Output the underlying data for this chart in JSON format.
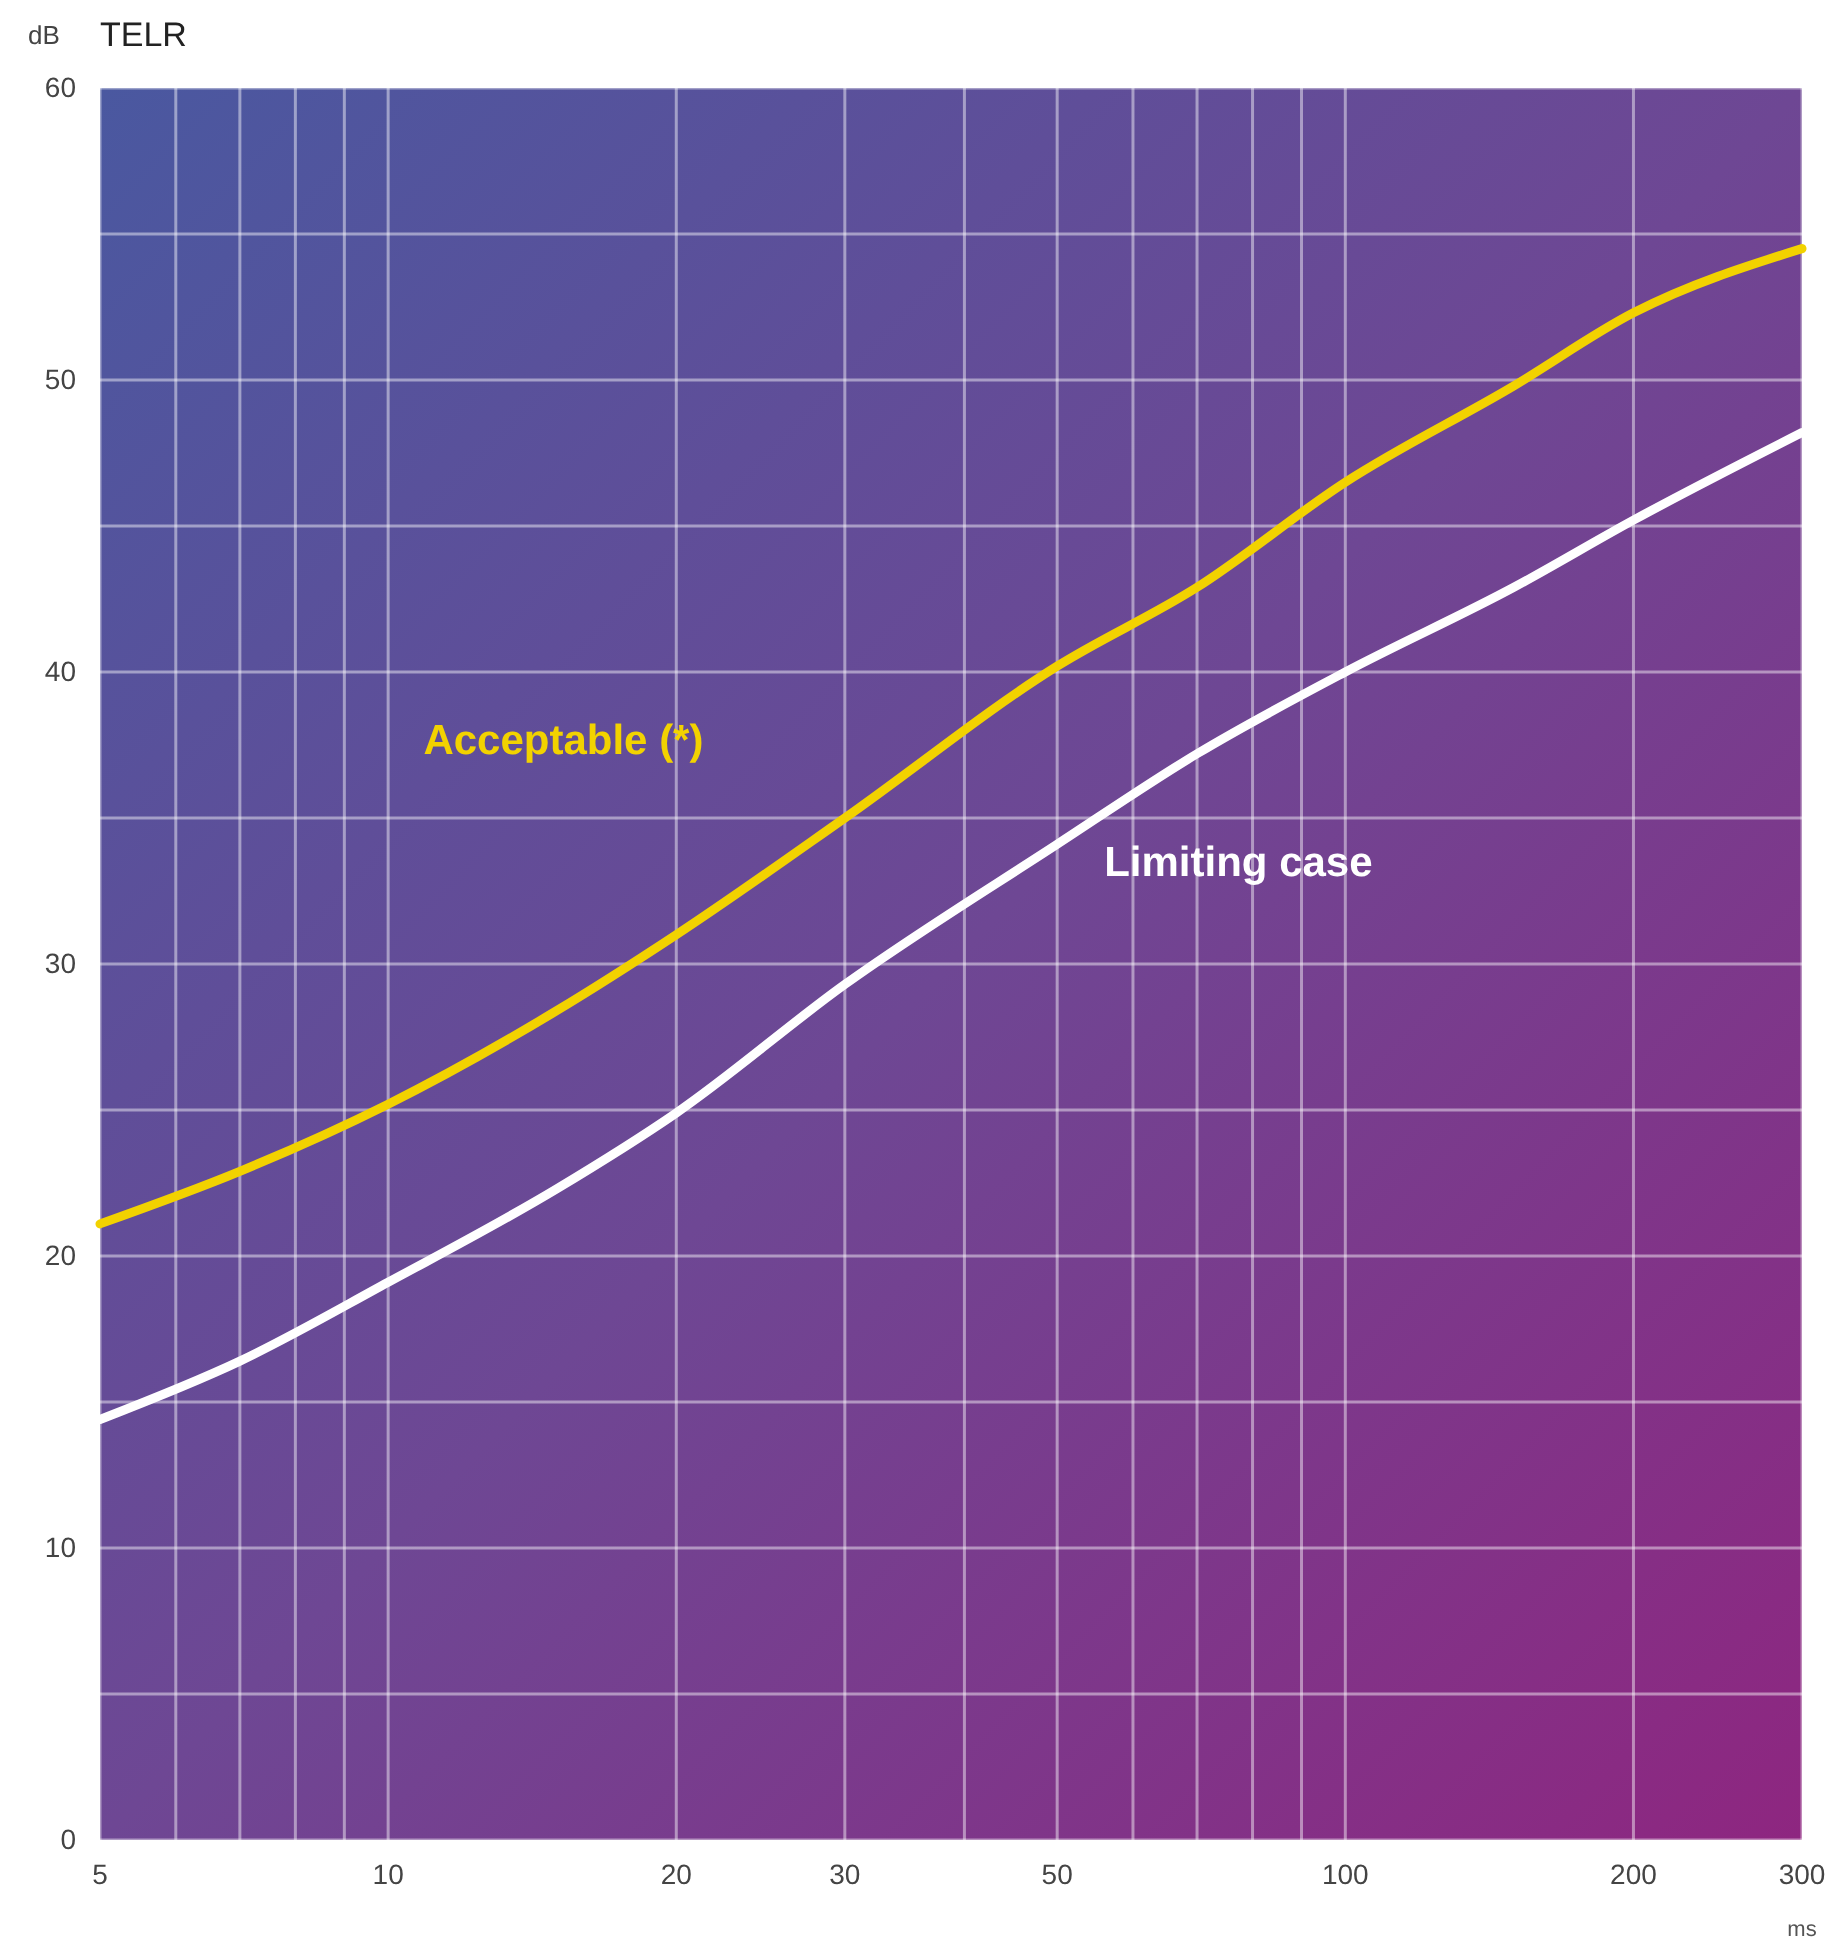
{
  "chart_data": {
    "type": "line",
    "title": "TELR",
    "ylabel": "dB",
    "xlabel": "ms",
    "log": "x",
    "xlim": [
      5,
      300
    ],
    "xticks": [
      5,
      {
        "value": 6,
        "label": null
      },
      {
        "value": 7,
        "label": null
      },
      {
        "value": 8,
        "label": null
      },
      {
        "value": 9,
        "label": null
      },
      10,
      20,
      30,
      {
        "value": 40,
        "label": null
      },
      50,
      {
        "value": 60,
        "label": null
      },
      {
        "value": 70,
        "label": null
      },
      {
        "value": 80,
        "label": null
      },
      {
        "value": 90,
        "label": null
      },
      100,
      200,
      300
    ],
    "ylim": [
      0,
      60
    ],
    "yticks": [
      0,
      {
        "value": 5,
        "label": null
      },
      10,
      {
        "value": 15,
        "label": null
      },
      20,
      {
        "value": 25,
        "label": null
      },
      30,
      {
        "value": 35,
        "label": null
      },
      40,
      {
        "value": 45,
        "label": null
      },
      50,
      {
        "value": 55,
        "label": null
      },
      60
    ],
    "grid": true,
    "legend": false,
    "marker": "none",
    "line_style": "solid",
    "series": [
      {
        "name": "Acceptable (*)",
        "color": "#f2d200",
        "x": [
          5,
          7,
          10,
          15,
          20,
          30,
          50,
          70,
          100,
          150,
          200,
          300
        ],
        "values": [
          21.1,
          22.9,
          25.2,
          28.4,
          31,
          35,
          40.2,
          42.9,
          46.5,
          49.8,
          52.3,
          54.5
        ]
      },
      {
        "name": "Limiting case",
        "color": "#ffffff",
        "x": [
          5,
          7,
          10,
          15,
          20,
          30,
          50,
          70,
          100,
          150,
          200,
          300
        ],
        "values": [
          14.4,
          16.4,
          19.1,
          22.3,
          24.9,
          29.3,
          34.1,
          37.2,
          40,
          42.9,
          45.2,
          48.2
        ]
      }
    ]
  }
}
